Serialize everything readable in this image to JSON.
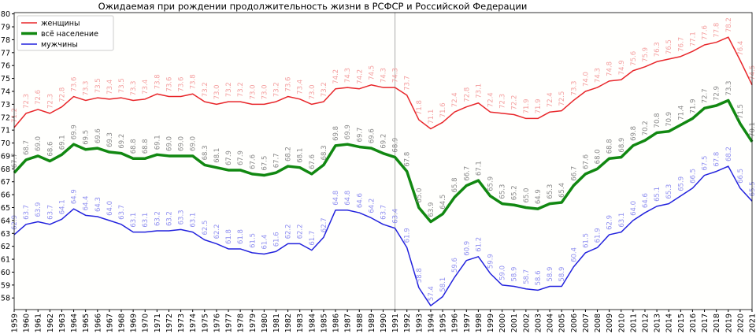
{
  "chart_data": {
    "type": "line",
    "title": "Ожидаемая при рождении продолжительность жизни в РСФСР и Российской Федерации",
    "xlabel": "",
    "ylabel": "",
    "xlim": [
      1959,
      2021
    ],
    "ylim": [
      57.1,
      80.1
    ],
    "yticks": [
      58,
      59,
      60,
      61,
      62,
      63,
      64,
      65,
      66,
      67,
      68,
      69,
      70,
      71,
      72,
      73,
      74,
      75,
      76,
      77,
      78,
      79,
      80
    ],
    "grid": false,
    "legend_position": "top-left",
    "vertical_marker_year": 1991,
    "x": [
      1959,
      1960,
      1961,
      1962,
      1963,
      1964,
      1965,
      1966,
      1967,
      1968,
      1969,
      1970,
      1971,
      1972,
      1973,
      1974,
      1975,
      1976,
      1977,
      1978,
      1979,
      1980,
      1981,
      1982,
      1983,
      1984,
      1985,
      1986,
      1987,
      1988,
      1989,
      1990,
      1991,
      1992,
      1993,
      1994,
      1995,
      1996,
      1997,
      1998,
      1999,
      2000,
      2001,
      2002,
      2003,
      2004,
      2005,
      2006,
      2007,
      2008,
      2009,
      2010,
      2011,
      2012,
      2013,
      2014,
      2015,
      2016,
      2017,
      2018,
      2019,
      2020,
      2021
    ],
    "series": [
      {
        "name": "женщины",
        "color": "#e8262a",
        "label_color": "#f4a0a0",
        "width": 1.5,
        "values": [
          71.2,
          72.3,
          72.6,
          72.3,
          72.8,
          73.6,
          73.3,
          73.5,
          73.4,
          73.5,
          73.3,
          73.4,
          73.8,
          73.6,
          73.6,
          73.8,
          73.2,
          73.0,
          73.2,
          73.2,
          73.0,
          73.0,
          73.2,
          73.6,
          73.4,
          73.0,
          73.2,
          74.2,
          74.3,
          74.2,
          74.5,
          74.3,
          74.3,
          73.7,
          71.8,
          71.1,
          71.6,
          72.4,
          72.8,
          73.1,
          72.4,
          72.3,
          72.2,
          71.9,
          71.9,
          72.4,
          72.5,
          73.3,
          74.0,
          74.3,
          74.8,
          74.9,
          75.6,
          75.9,
          76.3,
          76.5,
          76.7,
          77.1,
          77.6,
          77.8,
          78.2,
          76.4,
          74.5
        ]
      },
      {
        "name": "всё население",
        "color": "#118811",
        "label_color": "#888888",
        "width": 3.5,
        "values": [
          67.7,
          68.7,
          69.0,
          68.6,
          69.1,
          69.9,
          69.5,
          69.6,
          69.3,
          69.2,
          68.8,
          68.8,
          69.1,
          69.0,
          69.0,
          69.0,
          68.3,
          68.1,
          67.9,
          67.9,
          67.6,
          67.5,
          67.7,
          68.2,
          68.1,
          67.6,
          68.3,
          69.8,
          69.9,
          69.7,
          69.6,
          69.2,
          68.9,
          67.8,
          65.0,
          63.9,
          64.5,
          65.8,
          66.7,
          67.1,
          65.9,
          65.3,
          65.2,
          65.0,
          64.9,
          65.3,
          65.4,
          66.7,
          67.6,
          68.0,
          68.8,
          68.9,
          69.8,
          70.2,
          70.8,
          70.9,
          71.4,
          71.9,
          72.7,
          72.9,
          73.3,
          71.5,
          70.1
        ]
      },
      {
        "name": "мужчины",
        "color": "#2222dd",
        "label_color": "#8f8ff0",
        "width": 1.5,
        "values": [
          62.9,
          63.7,
          63.9,
          63.7,
          64.1,
          64.9,
          64.4,
          64.3,
          64.0,
          63.7,
          63.1,
          63.1,
          63.2,
          63.2,
          63.3,
          63.1,
          62.5,
          62.2,
          61.8,
          61.8,
          61.5,
          61.4,
          61.6,
          62.2,
          62.2,
          61.7,
          62.7,
          64.8,
          64.8,
          64.6,
          64.2,
          63.7,
          63.4,
          61.9,
          58.8,
          57.4,
          58.1,
          59.6,
          60.9,
          61.2,
          59.9,
          59.0,
          58.9,
          58.7,
          58.6,
          58.9,
          58.9,
          60.4,
          61.5,
          61.9,
          62.9,
          63.1,
          64.0,
          64.6,
          65.1,
          65.3,
          65.9,
          66.5,
          67.5,
          67.8,
          68.2,
          66.5,
          65.5
        ]
      }
    ]
  }
}
